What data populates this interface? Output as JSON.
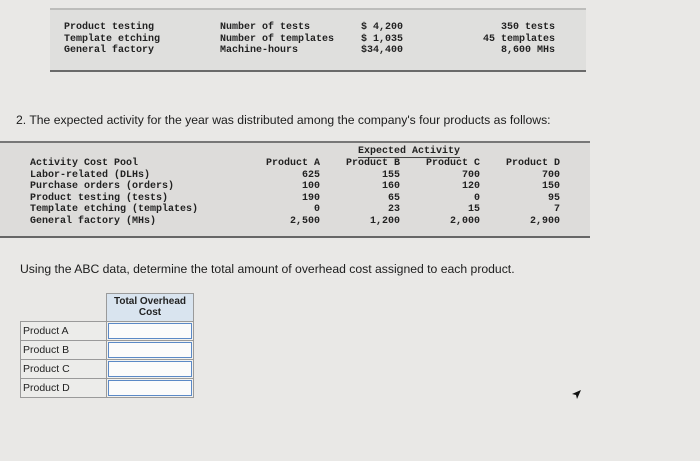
{
  "top_table": {
    "col1": [
      "Product testing",
      "Template etching",
      "General factory"
    ],
    "col2": [
      "Number of tests",
      "Number of templates",
      "Machine-hours"
    ],
    "col3": [
      "$ 4,200",
      "$ 1,035",
      "$34,400"
    ],
    "col4": [
      "350 tests",
      "45 templates",
      "8,600 MHs"
    ]
  },
  "question_2": "2. The expected activity for the year was distributed among the company's four products as follows:",
  "activity_table": {
    "title": "Expected Activity",
    "pool_header": "Activity Cost Pool",
    "pools": [
      "Labor-related (DLHs)",
      "Purchase orders (orders)",
      "Product testing (tests)",
      "Template etching (templates)",
      "General factory (MHs)"
    ],
    "products": [
      {
        "name": "Product A",
        "values": [
          "625",
          "100",
          "190",
          "0",
          "2,500"
        ]
      },
      {
        "name": "Product B",
        "values": [
          "155",
          "160",
          "65",
          "23",
          "1,200"
        ]
      },
      {
        "name": "Product C",
        "values": [
          "700",
          "120",
          "0",
          "15",
          "2,000"
        ]
      },
      {
        "name": "Product D",
        "values": [
          "700",
          "150",
          "95",
          "7",
          "2,900"
        ]
      }
    ]
  },
  "question_abc": "Using the ABC data, determine the total amount of overhead cost assigned to each product.",
  "answer_table": {
    "header_line1": "Total Overhead",
    "header_line2": "Cost",
    "rows": [
      {
        "label": "Product A",
        "value": ""
      },
      {
        "label": "Product B",
        "value": ""
      },
      {
        "label": "Product C",
        "value": ""
      },
      {
        "label": "Product D",
        "value": ""
      }
    ]
  }
}
